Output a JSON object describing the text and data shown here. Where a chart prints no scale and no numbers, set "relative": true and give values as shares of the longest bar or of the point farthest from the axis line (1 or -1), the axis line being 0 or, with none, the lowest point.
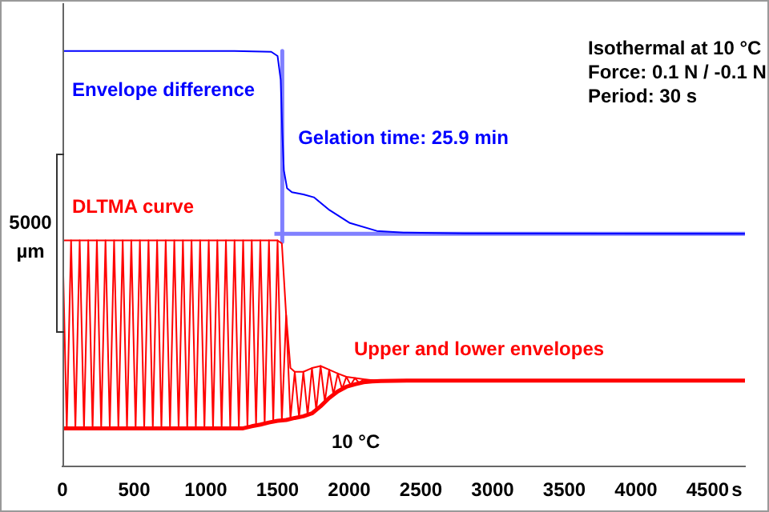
{
  "chart_data": {
    "type": "line",
    "relative": true,
    "xlabel": "s",
    "xlim": [
      0,
      4760
    ],
    "xticks": [
      0,
      500,
      1000,
      1500,
      2000,
      2500,
      3000,
      3500,
      4000,
      4500
    ],
    "grid": false,
    "legend": false,
    "marker": "none",
    "line_style": "solid",
    "series": [
      {
        "name": "Envelope difference",
        "color": "#0000ff",
        "x": [
          0,
          1200,
          1456,
          1500,
          1522,
          1533,
          1544,
          1566,
          1600,
          1680,
          1753,
          1863,
          2005,
          2192,
          2379,
          2800,
          4760
        ],
        "values": [
          1.0,
          1.0,
          0.998,
          0.988,
          0.931,
          0.805,
          0.713,
          0.67,
          0.66,
          0.655,
          0.648,
          0.617,
          0.586,
          0.567,
          0.563,
          0.561,
          0.56
        ]
      },
      {
        "name": "DLTMA curve",
        "color": "#ff0000",
        "x": [
          0,
          30,
          60,
          90,
          120,
          150,
          180,
          210,
          240,
          270,
          300,
          330,
          360,
          390,
          420,
          450,
          480,
          510,
          540,
          570,
          600,
          630,
          660,
          690,
          720,
          750,
          780,
          810,
          840,
          870,
          900,
          930,
          960,
          990,
          1020,
          1050,
          1080,
          1110,
          1140,
          1170,
          1200,
          1230,
          1260,
          1290,
          1320,
          1350,
          1380,
          1410,
          1440,
          1470,
          1500,
          1530,
          1560,
          1590,
          1620,
          1650,
          1680,
          1710,
          1740,
          1770,
          1800,
          1830,
          1860,
          1890,
          1920,
          1950,
          1980,
          2010,
          2040,
          2070,
          2100,
          2130,
          2160,
          2190,
          2220,
          2250,
          2280,
          4760
        ],
        "values": [
          0.544,
          0.092,
          0.544,
          0.092,
          0.544,
          0.092,
          0.544,
          0.092,
          0.544,
          0.092,
          0.544,
          0.092,
          0.544,
          0.092,
          0.544,
          0.092,
          0.544,
          0.092,
          0.544,
          0.092,
          0.544,
          0.092,
          0.544,
          0.092,
          0.544,
          0.092,
          0.544,
          0.092,
          0.544,
          0.092,
          0.544,
          0.092,
          0.544,
          0.092,
          0.544,
          0.092,
          0.544,
          0.092,
          0.544,
          0.092,
          0.544,
          0.092,
          0.544,
          0.096,
          0.544,
          0.099,
          0.544,
          0.103,
          0.544,
          0.108,
          0.544,
          0.11,
          0.364,
          0.115,
          0.228,
          0.119,
          0.228,
          0.124,
          0.237,
          0.136,
          0.242,
          0.156,
          0.233,
          0.174,
          0.224,
          0.187,
          0.216,
          0.196,
          0.213,
          0.201,
          0.21,
          0.204,
          0.208,
          0.206,
          0.207,
          0.206,
          0.207,
          0.207
        ]
      },
      {
        "name": "Upper and lower envelopes",
        "color": "#ff0000",
        "x": [
          0,
          1500,
          1530,
          1560,
          1590,
          1620,
          1680,
          1740,
          1800,
          1860,
          1920,
          1980,
          2040,
          2100,
          2160,
          2220,
          2400,
          4760
        ],
        "values": [
          0.544,
          0.544,
          0.537,
          0.364,
          0.237,
          0.228,
          0.228,
          0.237,
          0.242,
          0.233,
          0.224,
          0.216,
          0.213,
          0.21,
          0.208,
          0.207,
          0.207,
          0.207
        ]
      },
      {
        "color": "#ff0000",
        "x": [
          0,
          1260,
          1320,
          1380,
          1440,
          1500,
          1560,
          1620,
          1680,
          1740,
          1800,
          1860,
          1920,
          1980,
          2040,
          2100,
          2160,
          2220,
          2400,
          4760
        ],
        "values": [
          0.092,
          0.092,
          0.097,
          0.101,
          0.106,
          0.11,
          0.112,
          0.117,
          0.121,
          0.128,
          0.145,
          0.165,
          0.181,
          0.192,
          0.198,
          0.203,
          0.205,
          0.206,
          0.207,
          0.207
        ]
      },
      {
        "color": "#8080ff",
        "x": [
          1533,
          1533
        ],
        "values": [
          1.0,
          0.541
        ]
      },
      {
        "color": "#8080ff",
        "x": [
          1478,
          4760
        ],
        "values": [
          0.56,
          0.56
        ]
      }
    ],
    "annotations": [
      {
        "text": "Gelation time: 25.9 min",
        "x": 1554,
        "y": 0.791
      },
      "10 °C",
      "Isothermal at 10 °C",
      "Force: 0.1 N / -0.1 N",
      "Period: 30 s",
      "5000 µm"
    ]
  }
}
